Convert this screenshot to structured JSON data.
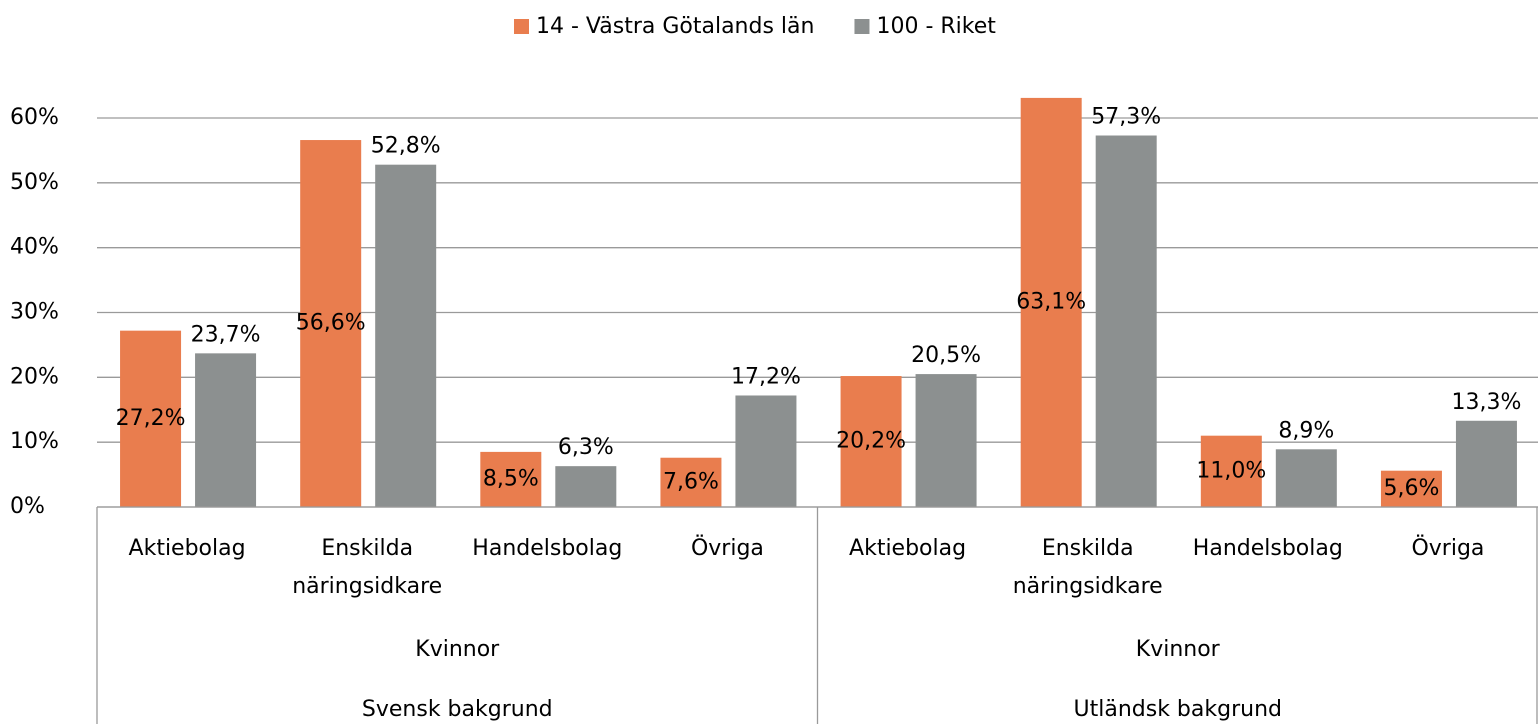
{
  "chart_data": {
    "type": "bar",
    "categories": [
      "Aktiebolag",
      "Enskilda näringsidkare",
      "Handelsbolag",
      "Övriga",
      "Aktiebolag",
      "Enskilda näringsidkare",
      "Handelsbolag",
      "Övriga"
    ],
    "category_levels": [
      [
        "Kvinnor",
        "Kvinnor"
      ],
      [
        "Svensk bakgrund",
        "Utländsk bakgrund"
      ]
    ],
    "series": [
      {
        "name": "14 - Västra Götalands län",
        "color": "#e97d4e",
        "label_position": "center",
        "values": [
          27.2,
          56.6,
          8.5,
          7.6,
          20.2,
          63.1,
          11.0,
          5.6
        ],
        "value_labels": [
          "27,2%",
          "56,6%",
          "8,5%",
          "7,6%",
          "20,2%",
          "63,1%",
          "11,0%",
          "5,6%"
        ]
      },
      {
        "name": "100 - Riket",
        "color": "#8c9090",
        "label_position": "above",
        "values": [
          23.7,
          52.8,
          6.3,
          17.2,
          20.5,
          57.3,
          8.9,
          13.3
        ],
        "value_labels": [
          "23,7%",
          "52,8%",
          "6,3%",
          "17,2%",
          "20,5%",
          "57,3%",
          "8,9%",
          "13,3%"
        ]
      }
    ],
    "ylim": [
      0,
      60
    ],
    "yticks": [
      {
        "value": 0,
        "label": "0%"
      },
      {
        "value": 10,
        "label": "10%"
      },
      {
        "value": 20,
        "label": "20%"
      },
      {
        "value": 30,
        "label": "30%"
      },
      {
        "value": 40,
        "label": "40%"
      },
      {
        "value": 50,
        "label": "50%"
      },
      {
        "value": 60,
        "label": "60%"
      }
    ],
    "grid": true,
    "legend": "top"
  }
}
